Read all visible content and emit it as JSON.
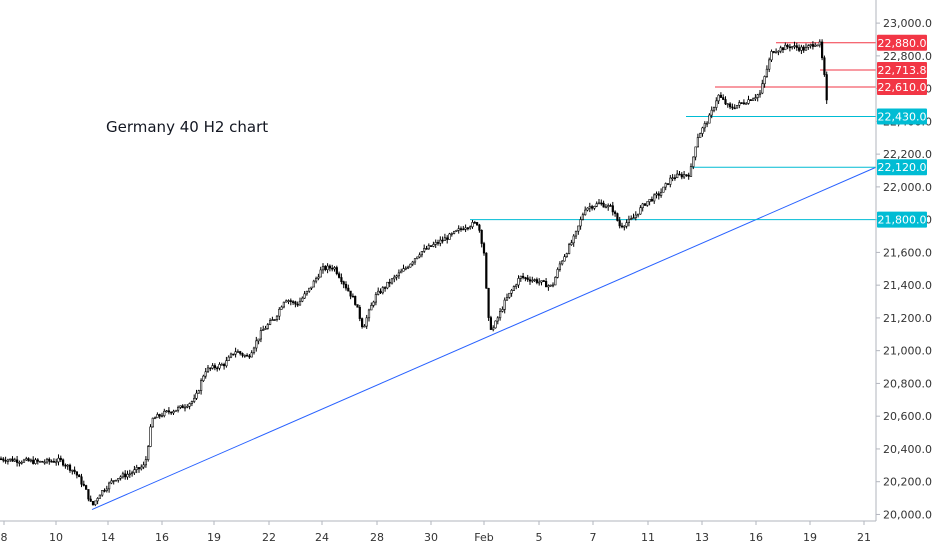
{
  "chart_data": {
    "type": "candlestick",
    "title": "Germany 40 H2 chart",
    "ylim": [
      19960,
      23080
    ],
    "y_ticks": [
      "20,000.0",
      "20,200.0",
      "20,400.0",
      "20,600.0",
      "20,800.0",
      "21,000.0",
      "21,200.0",
      "21,400.0",
      "21,600.0",
      "21,800.0",
      "22,000.0",
      "22,200.0",
      "22,400.0",
      "22,600.0",
      "22,800.0",
      "23,000.0"
    ],
    "x_ticks": [
      "8",
      "10",
      "14",
      "16",
      "19",
      "22",
      "24",
      "28",
      "30",
      "Feb",
      "5",
      "7",
      "11",
      "13",
      "16",
      "19",
      "21"
    ],
    "price_path": [
      [
        0,
        20340
      ],
      [
        18,
        20330
      ],
      [
        40,
        20320
      ],
      [
        60,
        20330
      ],
      [
        75,
        20260
      ],
      [
        85,
        20160
      ],
      [
        92,
        20050
      ],
      [
        100,
        20130
      ],
      [
        115,
        20220
      ],
      [
        130,
        20250
      ],
      [
        145,
        20300
      ],
      [
        152,
        20580
      ],
      [
        165,
        20620
      ],
      [
        180,
        20650
      ],
      [
        195,
        20700
      ],
      [
        205,
        20880
      ],
      [
        215,
        20900
      ],
      [
        225,
        20920
      ],
      [
        235,
        21000
      ],
      [
        248,
        20960
      ],
      [
        262,
        21120
      ],
      [
        275,
        21200
      ],
      [
        285,
        21320
      ],
      [
        297,
        21280
      ],
      [
        310,
        21380
      ],
      [
        322,
        21500
      ],
      [
        334,
        21510
      ],
      [
        345,
        21400
      ],
      [
        355,
        21300
      ],
      [
        363,
        21140
      ],
      [
        375,
        21330
      ],
      [
        390,
        21420
      ],
      [
        405,
        21500
      ],
      [
        420,
        21600
      ],
      [
        435,
        21650
      ],
      [
        450,
        21700
      ],
      [
        465,
        21760
      ],
      [
        478,
        21780
      ],
      [
        484,
        21600
      ],
      [
        488,
        21200
      ],
      [
        492,
        21120
      ],
      [
        505,
        21300
      ],
      [
        520,
        21450
      ],
      [
        535,
        21430
      ],
      [
        552,
        21390
      ],
      [
        560,
        21530
      ],
      [
        575,
        21700
      ],
      [
        585,
        21870
      ],
      [
        600,
        21900
      ],
      [
        612,
        21870
      ],
      [
        620,
        21760
      ],
      [
        632,
        21800
      ],
      [
        645,
        21900
      ],
      [
        660,
        21960
      ],
      [
        672,
        22060
      ],
      [
        690,
        22080
      ],
      [
        697,
        22300
      ],
      [
        710,
        22430
      ],
      [
        718,
        22560
      ],
      [
        730,
        22480
      ],
      [
        745,
        22520
      ],
      [
        760,
        22570
      ],
      [
        772,
        22830
      ],
      [
        790,
        22860
      ],
      [
        805,
        22840
      ],
      [
        815,
        22880
      ],
      [
        820,
        22870
      ],
      [
        824,
        22700
      ],
      [
        828,
        22430
      ]
    ],
    "levels": [
      {
        "label": "22,880.0",
        "value": 22880,
        "kind": "resistance",
        "color": "#f23645"
      },
      {
        "label": "22,713.8",
        "value": 22713.8,
        "kind": "current",
        "color": "#f23645"
      },
      {
        "label": "22,610.0",
        "value": 22610,
        "kind": "resistance",
        "color": "#f23645"
      },
      {
        "label": "22,430.0",
        "value": 22430,
        "kind": "support",
        "color": "#00bcd4"
      },
      {
        "label": "22,120.0",
        "value": 22120,
        "kind": "support",
        "color": "#00bcd4"
      },
      {
        "label": "21,800.0",
        "value": 21800,
        "kind": "support",
        "color": "#00bcd4"
      }
    ],
    "trendline": {
      "color": "#2962ff",
      "from_price": 20030,
      "to_price": 22120
    },
    "colors": {
      "candle": "#000000",
      "axis": "#b2b5be",
      "resistance": "#f23645",
      "support": "#00bcd4",
      "trendline": "#2962ff"
    }
  }
}
